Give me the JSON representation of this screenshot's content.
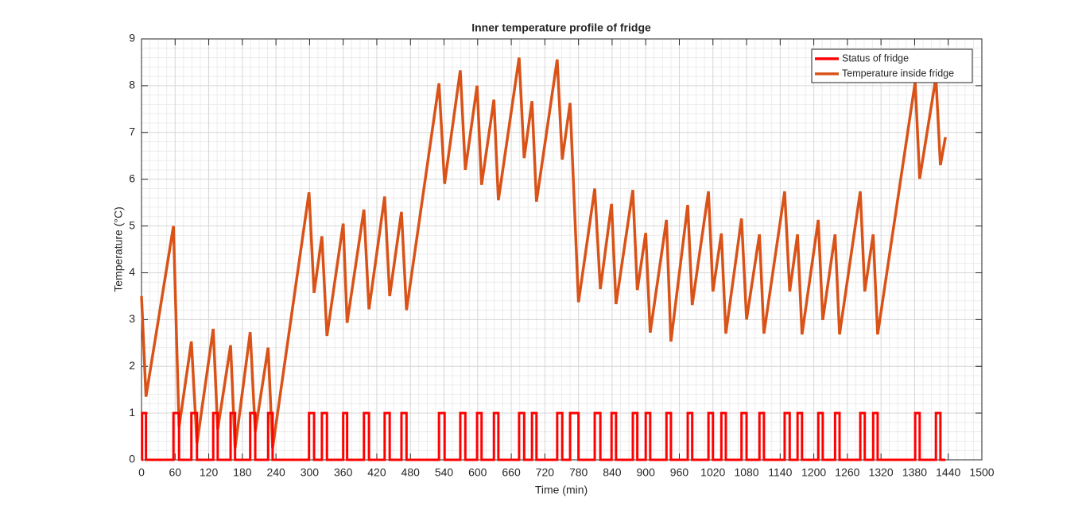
{
  "chart_data": {
    "type": "line",
    "title": "Inner temperature profile of fridge",
    "xlabel": "Time (min)",
    "ylabel": "Temperature (°C)",
    "xlim": [
      0,
      1500
    ],
    "xticks": [
      0,
      60,
      120,
      180,
      240,
      300,
      360,
      420,
      480,
      540,
      600,
      660,
      720,
      780,
      840,
      900,
      960,
      1020,
      1080,
      1140,
      1200,
      1260,
      1320,
      1380,
      1440,
      1500
    ],
    "ylim": [
      0,
      9
    ],
    "yticks": [
      0,
      1,
      2,
      3,
      4,
      5,
      6,
      7,
      8,
      9
    ],
    "grid": true,
    "minor_grid": true,
    "legend": "upper right",
    "series": [
      {
        "name": "Status of fridge",
        "color": "#ff0000",
        "x": [
          0,
          1,
          1,
          8,
          8,
          57,
          57,
          67,
          67,
          89,
          89,
          99,
          99,
          128,
          128,
          136,
          136,
          159,
          159,
          167,
          167,
          194,
          194,
          203,
          203,
          226,
          226,
          234,
          234,
          299,
          299,
          308,
          308,
          322,
          322,
          331,
          331,
          360,
          360,
          367,
          367,
          397,
          397,
          406,
          406,
          434,
          434,
          443,
          443,
          464,
          464,
          473,
          473,
          531,
          531,
          541,
          541,
          569,
          569,
          578,
          578,
          599,
          599,
          607,
          607,
          629,
          629,
          637,
          637,
          674,
          674,
          683,
          683,
          697,
          697,
          705,
          705,
          742,
          742,
          751,
          751,
          765,
          765,
          780,
          780,
          809,
          809,
          819,
          819,
          839,
          839,
          847,
          847,
          877,
          877,
          885,
          885,
          900,
          900,
          908,
          908,
          937,
          937,
          945,
          945,
          975,
          975,
          983,
          983,
          1012,
          1012,
          1020,
          1020,
          1035,
          1035,
          1043,
          1043,
          1071,
          1071,
          1080,
          1080,
          1103,
          1103,
          1111,
          1111,
          1148,
          1148,
          1157,
          1157,
          1171,
          1171,
          1179,
          1179,
          1208,
          1208,
          1216,
          1216,
          1238,
          1238,
          1246,
          1246,
          1283,
          1283,
          1291,
          1291,
          1306,
          1306,
          1314,
          1314,
          1381,
          1381,
          1389,
          1389,
          1418,
          1418,
          1426,
          1426,
          1435
        ],
        "values": [
          0,
          0,
          1,
          1,
          0,
          0,
          1,
          1,
          0,
          0,
          1,
          1,
          0,
          0,
          1,
          1,
          0,
          0,
          1,
          1,
          0,
          0,
          1,
          1,
          0,
          0,
          1,
          1,
          0,
          0,
          1,
          1,
          0,
          0,
          1,
          1,
          0,
          0,
          1,
          1,
          0,
          0,
          1,
          1,
          0,
          0,
          1,
          1,
          0,
          0,
          1,
          1,
          0,
          0,
          1,
          1,
          0,
          0,
          1,
          1,
          0,
          0,
          1,
          1,
          0,
          0,
          1,
          1,
          0,
          0,
          1,
          1,
          0,
          0,
          1,
          1,
          0,
          0,
          1,
          1,
          0,
          0,
          1,
          1,
          0,
          0,
          1,
          1,
          0,
          0,
          1,
          1,
          0,
          0,
          1,
          1,
          0,
          0,
          1,
          1,
          0,
          0,
          1,
          1,
          0,
          0,
          1,
          1,
          0,
          0,
          1,
          1,
          0,
          0,
          1,
          1,
          0,
          0,
          1,
          1,
          0,
          0,
          1,
          1,
          0,
          0,
          1,
          1,
          0,
          0,
          1,
          1,
          0,
          0,
          1,
          1,
          0,
          0,
          1,
          1,
          0,
          0,
          1,
          1,
          0,
          0,
          1,
          1,
          0,
          0,
          1,
          1,
          0,
          0,
          1,
          1,
          0,
          0
        ]
      },
      {
        "name": "Temperature inside fridge",
        "color": "#d95319",
        "x": [
          0,
          8,
          57,
          67,
          89,
          99,
          128,
          136,
          159,
          167,
          194,
          203,
          226,
          234,
          299,
          308,
          322,
          331,
          360,
          367,
          397,
          406,
          434,
          443,
          464,
          473,
          531,
          541,
          569,
          578,
          599,
          607,
          629,
          637,
          674,
          683,
          697,
          705,
          742,
          751,
          765,
          780,
          809,
          819,
          839,
          847,
          877,
          885,
          900,
          908,
          937,
          945,
          975,
          983,
          1012,
          1020,
          1035,
          1043,
          1071,
          1080,
          1103,
          1111,
          1148,
          1157,
          1171,
          1179,
          1208,
          1216,
          1238,
          1246,
          1283,
          1291,
          1306,
          1314,
          1381,
          1389,
          1418,
          1426,
          1435
        ],
        "values": [
          3.5,
          1.35,
          5.0,
          0.7,
          2.53,
          0.35,
          2.8,
          0.65,
          2.45,
          0.25,
          2.73,
          0.6,
          2.4,
          0.25,
          5.72,
          3.57,
          4.78,
          2.65,
          5.05,
          2.93,
          5.35,
          3.22,
          5.63,
          3.5,
          5.3,
          3.2,
          8.05,
          5.9,
          8.33,
          6.2,
          8.0,
          5.88,
          7.7,
          5.55,
          8.6,
          6.45,
          7.67,
          5.52,
          8.56,
          6.42,
          7.63,
          3.37,
          5.8,
          3.65,
          5.47,
          3.33,
          5.77,
          3.63,
          4.85,
          2.72,
          5.13,
          2.53,
          5.45,
          3.31,
          5.74,
          3.6,
          4.84,
          2.7,
          5.16,
          3.0,
          4.82,
          2.7,
          5.74,
          3.6,
          4.82,
          2.68,
          5.13,
          2.99,
          4.82,
          2.68,
          5.74,
          3.6,
          4.82,
          2.68,
          8.08,
          6.01,
          8.18,
          6.3,
          6.9
        ]
      }
    ]
  }
}
